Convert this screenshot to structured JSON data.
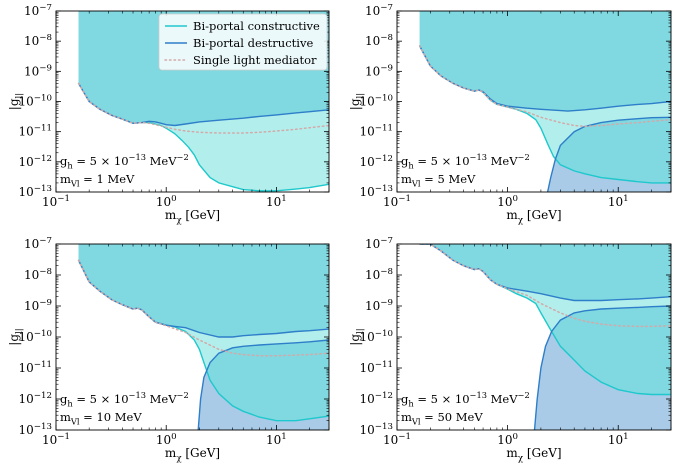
{
  "chart_data": [
    {
      "type": "line",
      "panel": "top-left",
      "xlabel": "m_χ [GeV]",
      "ylabel": "|g_l|",
      "xscale": "log",
      "yscale": "log",
      "xlim": [
        0.1,
        30
      ],
      "ylim": [
        1e-13,
        1e-07
      ],
      "x_ticks": [
        0.1,
        1,
        10
      ],
      "x_tick_labels": [
        "10^-1",
        "10^0",
        "10^1"
      ],
      "y_ticks": [
        1e-13,
        1e-12,
        1e-11,
        1e-10,
        1e-09,
        1e-08,
        1e-07
      ],
      "y_tick_labels": [
        "10^-13",
        "10^-12",
        "10^-11",
        "10^-10",
        "10^-9",
        "10^-8",
        "10^-7"
      ],
      "annotation": {
        "gh": "g_h = 5 × 10^-13 MeV^-2",
        "mass": "m_Vl = 1 MeV"
      },
      "legend": {
        "position": "top-right",
        "entries": [
          "Bi-portal constructive",
          "Bi-portal destructive",
          "Single light mediator"
        ]
      },
      "series": [
        {
          "name": "Bi-portal constructive",
          "color": "#1ec8cc",
          "x": [
            0.16,
            0.2,
            0.25,
            0.32,
            0.4,
            0.5,
            0.6,
            0.7,
            0.8,
            0.9,
            1.0,
            1.2,
            1.4,
            1.6,
            1.8,
            2.0,
            2.5,
            3,
            4,
            5,
            7,
            10,
            15,
            20,
            30
          ],
          "y": [
            4e-10,
            1e-10,
            5.5e-11,
            3.5e-11,
            2.6e-11,
            1.9e-11,
            2e-11,
            2e-11,
            1.8e-11,
            1.6e-11,
            1.3e-11,
            8.5e-12,
            5e-12,
            3e-12,
            1.7e-12,
            8e-13,
            3e-13,
            2e-13,
            1.5e-13,
            1.2e-13,
            1.1e-13,
            1.1e-13,
            1.25e-13,
            1.4e-13,
            1.8e-13
          ]
        },
        {
          "name": "Bi-portal destructive",
          "color": "#2e7ec9",
          "x": [
            0.16,
            0.2,
            0.25,
            0.32,
            0.4,
            0.5,
            0.6,
            0.7,
            0.8,
            0.9,
            1.0,
            1.2,
            1.5,
            2,
            3,
            5,
            7,
            10,
            15,
            20,
            30
          ],
          "y": [
            4e-10,
            1e-10,
            5.5e-11,
            3.5e-11,
            2.6e-11,
            1.9e-11,
            2e-11,
            2.2e-11,
            2.1e-11,
            1.9e-11,
            1.7e-11,
            1.6e-11,
            1.8e-11,
            2.1e-11,
            2.4e-11,
            2.8e-11,
            3.2e-11,
            3.6e-11,
            4.2e-11,
            4.6e-11,
            5.3e-11
          ]
        },
        {
          "name": "Single light mediator",
          "color": "#d4a9a9",
          "dash": true,
          "x": [
            0.16,
            0.2,
            0.25,
            0.32,
            0.4,
            0.5,
            0.6,
            0.7,
            0.8,
            1.0,
            1.2,
            1.5,
            2,
            3,
            5,
            7,
            10,
            15,
            20,
            30
          ],
          "y": [
            4e-10,
            1e-10,
            5.5e-11,
            3.5e-11,
            2.6e-11,
            1.9e-11,
            2e-11,
            1.9e-11,
            1.7e-11,
            1.4e-11,
            1.2e-11,
            1.05e-11,
            9.5e-12,
            9e-12,
            9e-12,
            9.5e-12,
            1.05e-11,
            1.2e-11,
            1.35e-11,
            1.6e-11
          ]
        }
      ]
    },
    {
      "type": "line",
      "panel": "top-right",
      "xlabel": "m_χ [GeV]",
      "ylabel": "|g_l|",
      "xscale": "log",
      "yscale": "log",
      "xlim": [
        0.1,
        30
      ],
      "ylim": [
        1e-13,
        1e-07
      ],
      "x_ticks": [
        0.1,
        1,
        10
      ],
      "x_tick_labels": [
        "10^-1",
        "10^0",
        "10^1"
      ],
      "y_ticks": [
        1e-13,
        1e-12,
        1e-11,
        1e-10,
        1e-09,
        1e-08,
        1e-07
      ],
      "y_tick_labels": [
        "10^-13",
        "10^-12",
        "10^-11",
        "10^-10",
        "10^-9",
        "10^-8",
        "10^-7"
      ],
      "annotation": {
        "gh": "g_h = 5 × 10^-13 MeV^-2",
        "mass": "m_Vl = 5 MeV"
      },
      "series": [
        {
          "name": "Bi-portal constructive",
          "color": "#1ec8cc",
          "x": [
            0.16,
            0.2,
            0.25,
            0.32,
            0.4,
            0.5,
            0.55,
            0.6,
            0.7,
            0.8,
            1.0,
            1.2,
            1.5,
            1.8,
            2.0,
            2.3,
            2.6,
            3,
            4,
            5,
            7,
            10,
            15,
            20,
            30
          ],
          "y": [
            7e-09,
            1.5e-09,
            7e-10,
            4e-10,
            2.8e-10,
            2.2e-10,
            2.4e-10,
            2e-10,
            1.1e-10,
            8e-11,
            6.5e-11,
            5.5e-11,
            4e-11,
            2.5e-11,
            1.3e-11,
            4e-12,
            1.5e-12,
            8e-13,
            5e-13,
            4e-13,
            3e-13,
            2.6e-13,
            2.2e-13,
            2e-13,
            2e-13
          ]
        },
        {
          "name": "Bi-portal destructive (upper)",
          "color": "#2e7ec9",
          "x": [
            0.16,
            0.2,
            0.25,
            0.32,
            0.4,
            0.5,
            0.55,
            0.6,
            0.7,
            0.8,
            1.0,
            1.5,
            2,
            3,
            3.5,
            5,
            7,
            10,
            15,
            20,
            30
          ],
          "y": [
            7e-09,
            1.5e-09,
            7e-10,
            4e-10,
            2.8e-10,
            2.2e-10,
            2.4e-10,
            2.1e-10,
            1.2e-10,
            8.5e-11,
            7e-11,
            6e-11,
            5.5e-11,
            5e-11,
            4.8e-11,
            5.3e-11,
            6e-11,
            7e-11,
            8e-11,
            8.5e-11,
            1e-10
          ]
        },
        {
          "name": "Bi-portal destructive (lower)",
          "color": "#2e7ec9",
          "x": [
            2.3,
            2.45,
            2.7,
            3,
            4,
            5,
            7,
            10,
            15,
            20,
            30
          ],
          "y": [
            1e-13,
            3e-13,
            1.2e-12,
            3.5e-12,
            1e-11,
            1.5e-11,
            2e-11,
            2.4e-11,
            2.7e-11,
            2.9e-11,
            3e-11
          ]
        },
        {
          "name": "Single light mediator",
          "color": "#d4a9a9",
          "dash": true,
          "x": [
            0.16,
            0.2,
            0.25,
            0.32,
            0.4,
            0.5,
            0.55,
            0.6,
            0.7,
            0.8,
            1.0,
            1.5,
            2,
            3,
            4,
            5,
            7,
            10,
            15,
            20,
            30
          ],
          "y": [
            7e-09,
            1.5e-09,
            7e-10,
            4e-10,
            2.8e-10,
            2.2e-10,
            2.4e-10,
            2e-10,
            1.1e-10,
            8e-11,
            6.5e-11,
            4.5e-11,
            3e-11,
            2e-11,
            1.6e-11,
            1.5e-11,
            1.6e-11,
            1.8e-11,
            2e-11,
            2.2e-11,
            2.5e-11
          ]
        }
      ]
    },
    {
      "type": "line",
      "panel": "bottom-left",
      "xlabel": "m_χ [GeV]",
      "ylabel": "|g_l|",
      "xscale": "log",
      "yscale": "log",
      "xlim": [
        0.1,
        30
      ],
      "ylim": [
        1e-13,
        1e-07
      ],
      "x_ticks": [
        0.1,
        1,
        10
      ],
      "x_tick_labels": [
        "10^-1",
        "10^0",
        "10^1"
      ],
      "y_ticks": [
        1e-13,
        1e-12,
        1e-11,
        1e-10,
        1e-09,
        1e-08,
        1e-07
      ],
      "y_tick_labels": [
        "10^-13",
        "10^-12",
        "10^-11",
        "10^-10",
        "10^-9",
        "10^-8",
        "10^-7"
      ],
      "annotation": {
        "gh": "g_h = 5 × 10^-13 MeV^-2",
        "mass": "m_Vl = 10 MeV"
      },
      "series": [
        {
          "name": "Bi-portal constructive",
          "color": "#1ec8cc",
          "x": [
            0.16,
            0.2,
            0.25,
            0.32,
            0.4,
            0.5,
            0.55,
            0.6,
            0.7,
            0.8,
            1.0,
            1.2,
            1.5,
            1.8,
            2.0,
            2.2,
            2.5,
            3,
            4,
            5,
            7,
            10,
            15,
            20,
            30
          ],
          "y": [
            3e-08,
            6e-09,
            3e-09,
            1.6e-09,
            1.1e-09,
            8e-10,
            8.5e-10,
            7.5e-10,
            4.5e-10,
            3e-10,
            2.4e-10,
            2.1e-10,
            1.5e-10,
            8e-11,
            4e-11,
            1.5e-11,
            4e-12,
            1.5e-12,
            6e-13,
            4e-13,
            2.6e-13,
            2e-13,
            2e-13,
            2.3e-13,
            2.8e-13
          ]
        },
        {
          "name": "Bi-portal destructive (upper)",
          "color": "#2e7ec9",
          "x": [
            0.16,
            0.2,
            0.25,
            0.32,
            0.4,
            0.5,
            0.55,
            0.6,
            0.7,
            0.8,
            1.0,
            1.2,
            1.5,
            2,
            3,
            4,
            5,
            7,
            10,
            15,
            20,
            30
          ],
          "y": [
            3e-08,
            6e-09,
            3e-09,
            1.6e-09,
            1.1e-09,
            8e-10,
            8.5e-10,
            7.5e-10,
            4.5e-10,
            3e-10,
            2.4e-10,
            2.2e-10,
            2e-10,
            1.4e-10,
            1e-10,
            1e-10,
            1.1e-10,
            1.2e-10,
            1.3e-10,
            1.5e-10,
            1.6e-10,
            1.8e-10
          ]
        },
        {
          "name": "Bi-portal destructive (lower)",
          "color": "#2e7ec9",
          "x": [
            1.95,
            2.05,
            2.2,
            2.5,
            3,
            4,
            5,
            7,
            10,
            15,
            20,
            30
          ],
          "y": [
            1e-13,
            1e-12,
            5e-12,
            1.5e-11,
            3e-11,
            4.5e-11,
            5e-11,
            5.5e-11,
            6e-11,
            6.5e-11,
            7e-11,
            8e-11
          ]
        },
        {
          "name": "Single light mediator",
          "color": "#d4a9a9",
          "dash": true,
          "x": [
            0.16,
            0.2,
            0.25,
            0.32,
            0.4,
            0.5,
            0.55,
            0.6,
            0.7,
            0.8,
            1.0,
            1.5,
            2,
            3,
            4,
            5,
            7,
            10,
            15,
            20,
            30
          ],
          "y": [
            3e-08,
            6e-09,
            3e-09,
            1.6e-09,
            1.1e-09,
            8e-10,
            8.5e-10,
            7.5e-10,
            4.5e-10,
            3e-10,
            2.3e-10,
            1.4e-10,
            8e-11,
            4e-11,
            3e-11,
            2.7e-11,
            2.5e-11,
            2.5e-11,
            2.6e-11,
            2.7e-11,
            3e-11
          ]
        }
      ]
    },
    {
      "type": "line",
      "panel": "bottom-right",
      "xlabel": "m_χ [GeV]",
      "ylabel": "|g_l|",
      "xscale": "log",
      "yscale": "log",
      "xlim": [
        0.1,
        30
      ],
      "ylim": [
        1e-13,
        1e-07
      ],
      "x_ticks": [
        0.1,
        1,
        10
      ],
      "x_tick_labels": [
        "10^-1",
        "10^0",
        "10^1"
      ],
      "y_ticks": [
        1e-13,
        1e-12,
        1e-11,
        1e-10,
        1e-09,
        1e-08,
        1e-07
      ],
      "y_tick_labels": [
        "10^-13",
        "10^-12",
        "10^-11",
        "10^-10",
        "10^-9",
        "10^-8",
        "10^-7"
      ],
      "annotation": {
        "gh": "g_h = 5 × 10^-13 MeV^-2",
        "mass": "m_Vl = 50 MeV"
      },
      "series": [
        {
          "name": "Bi-portal constructive",
          "color": "#1ec8cc",
          "x": [
            0.16,
            0.2,
            0.25,
            0.32,
            0.4,
            0.5,
            0.55,
            0.6,
            0.7,
            0.8,
            1.0,
            1.2,
            1.5,
            1.8,
            2.0,
            2.5,
            3,
            4,
            5,
            7,
            10,
            15,
            20,
            30
          ],
          "y": [
            1e-07,
            1e-07,
            6e-08,
            3e-08,
            2e-08,
            1.5e-08,
            1.6e-08,
            1.3e-08,
            7e-09,
            5e-09,
            3.5e-09,
            2.5e-09,
            1.8e-09,
            1.2e-09,
            6e-10,
            1.5e-10,
            5e-11,
            1.8e-11,
            8e-12,
            3.5e-12,
            2e-12,
            1.5e-12,
            1.4e-12,
            1.4e-12
          ]
        },
        {
          "name": "Bi-portal destructive (upper)",
          "color": "#2e7ec9",
          "x": [
            0.16,
            0.2,
            0.25,
            0.32,
            0.4,
            0.5,
            0.55,
            0.6,
            0.7,
            0.8,
            1.0,
            1.5,
            2,
            3,
            4,
            5,
            7,
            10,
            15,
            20,
            30
          ],
          "y": [
            1e-07,
            1e-07,
            6e-08,
            3e-08,
            2e-08,
            1.5e-08,
            1.6e-08,
            1.3e-08,
            7e-09,
            5e-09,
            3.8e-09,
            3e-09,
            2.5e-09,
            1.8e-09,
            1.5e-09,
            1.5e-09,
            1.5e-09,
            1.6e-09,
            1.7e-09,
            1.8e-09,
            2e-09
          ]
        },
        {
          "name": "Bi-portal destructive (lower)",
          "color": "#2e7ec9",
          "x": [
            1.75,
            1.85,
            2.0,
            2.2,
            2.5,
            3,
            4,
            5,
            7,
            10,
            15,
            20,
            30
          ],
          "y": [
            1e-13,
            1e-12,
            1e-11,
            5e-11,
            1.5e-10,
            3.5e-10,
            6e-10,
            7e-10,
            8e-10,
            8.5e-10,
            9e-10,
            9.5e-10,
            1e-09
          ]
        },
        {
          "name": "Single light mediator",
          "color": "#d4a9a9",
          "dash": true,
          "x": [
            0.16,
            0.2,
            0.25,
            0.32,
            0.4,
            0.5,
            0.55,
            0.6,
            0.7,
            0.8,
            1.0,
            1.5,
            2,
            3,
            4,
            5,
            7,
            10,
            15,
            20,
            30
          ],
          "y": [
            1e-07,
            1e-07,
            6e-08,
            3e-08,
            2e-08,
            1.5e-08,
            1.6e-08,
            1.3e-08,
            7e-09,
            5e-09,
            3.6e-09,
            2.2e-09,
            1.2e-09,
            6e-10,
            4e-10,
            3.2e-10,
            2.6e-10,
            2.3e-10,
            2.2e-10,
            2.2e-10,
            2.3e-10
          ]
        }
      ]
    }
  ],
  "colors": {
    "excluded_fill": "#80d8e0",
    "constructive_fill": "#b2efec",
    "destructive_fill": "#a9cbe8",
    "constructive_line": "#1ec8cc",
    "destructive_line": "#2e7ec9",
    "single_line": "#d4a9a9"
  }
}
